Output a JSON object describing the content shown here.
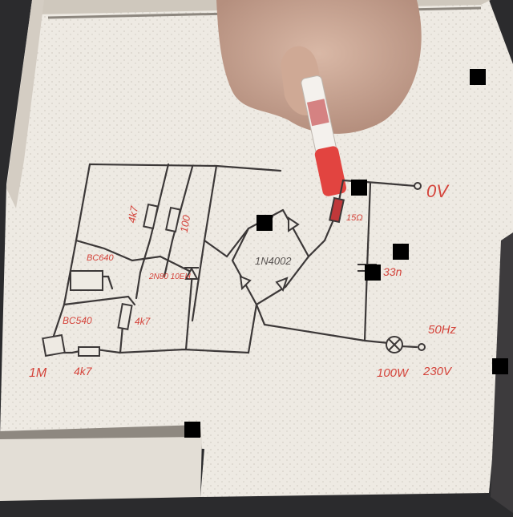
{
  "photo": {
    "colors": {
      "board": "#eeeae3",
      "wire": "#3c3838",
      "red_ink": "#d4433a",
      "skin": "#caa796",
      "marker_body": "#f4f1ed",
      "marker_cap": "#e24440",
      "redaction": "#000000"
    }
  },
  "whiteboard": {
    "labels": [
      {
        "id": "r-top-left",
        "text": "4k7"
      },
      {
        "id": "r-top-mid",
        "text": "100"
      },
      {
        "id": "transistor-1",
        "text": "BC640"
      },
      {
        "id": "thyristor",
        "text": "2N80 10EH"
      },
      {
        "id": "transistor-2",
        "text": "BC540"
      },
      {
        "id": "r-mid",
        "text": "4k7"
      },
      {
        "id": "bridge",
        "text": "1N4002"
      },
      {
        "id": "r-series",
        "text": "15Ω"
      },
      {
        "id": "out-voltage",
        "text": "0V"
      },
      {
        "id": "cap",
        "text": "33n"
      },
      {
        "id": "ac-voltage",
        "text": "230V"
      },
      {
        "id": "lamp-watts",
        "text": "100W"
      },
      {
        "id": "lamp-freq",
        "text": "50Hz"
      },
      {
        "id": "pot",
        "text": "1M"
      },
      {
        "id": "r-bottom",
        "text": "4k7"
      }
    ]
  }
}
